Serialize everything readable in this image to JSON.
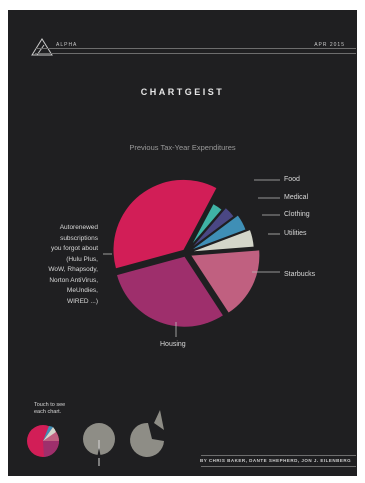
{
  "header": {
    "left": "ALPHA",
    "right": "APR 2015"
  },
  "title": "CHARTGEIST",
  "chart_data": {
    "type": "pie",
    "title": "Previous Tax-Year Expenditures",
    "slices": [
      {
        "label": "Food",
        "value": 3.5,
        "color": "#3fb3a6"
      },
      {
        "label": "Medical",
        "value": 3.5,
        "color": "#4a4784"
      },
      {
        "label": "Clothing",
        "value": 4.5,
        "color": "#3f8fb6"
      },
      {
        "label": "Utilities",
        "value": 4.5,
        "color": "#d4d6ca"
      },
      {
        "label": "Starbucks",
        "value": 17,
        "color": "#c06080"
      },
      {
        "label": "Housing",
        "value": 30,
        "color": "#9e2f6c"
      },
      {
        "label": "Autorenewed subscriptions you forgot about (Hulu Plus, WoW, Rhapsody, Norton AntiVirus, MeUndies, WIRED ...)",
        "value": 37,
        "color": "#d21e57"
      }
    ]
  },
  "labels": {
    "food": "Food",
    "medical": "Medical",
    "clothing": "Clothing",
    "utilities": "Utilities",
    "starbucks": "Starbucks",
    "housing": "Housing",
    "subscriptions": [
      "Autorenewed",
      "subscriptions",
      "you forgot about",
      "(Hulu Plus,",
      "WoW, Rhapsody,",
      "Norton AntiVirus,",
      "MeUndies,",
      "WIRED ...)"
    ]
  },
  "touch_hint": [
    "Touch to see",
    "each chart."
  ],
  "credits": "BY CHRIS BAKER, DANTE SHEPHERD, JON J. EILENBERG",
  "colors": {
    "background": "#1f1f21",
    "thumb_gray": "#8e8d86"
  }
}
